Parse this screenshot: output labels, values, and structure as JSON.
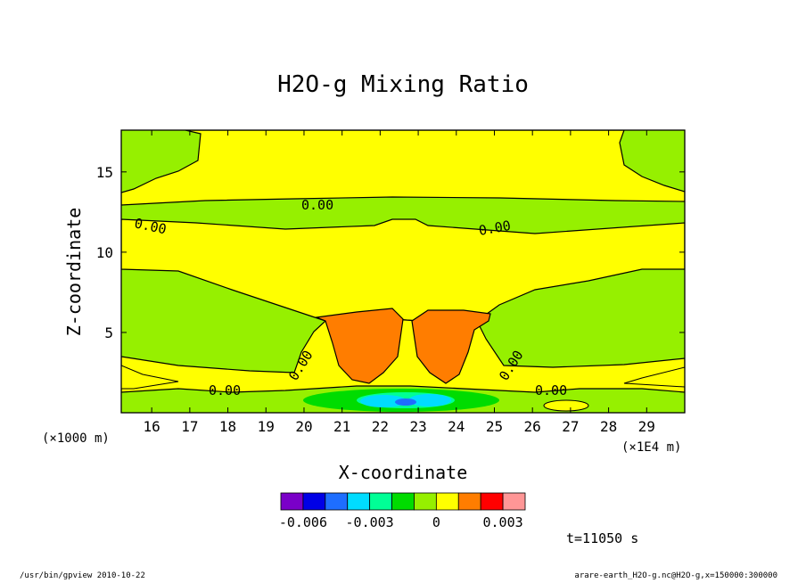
{
  "chart_data": {
    "type": "contour",
    "title": "H2O-g Mixing Ratio",
    "xlabel": "X-coordinate",
    "ylabel": "Z-coordinate",
    "x_unit_left": "(×1000 m)",
    "x_unit_right": "(×1E4 m)",
    "xlim": [
      15.2,
      30.0
    ],
    "ylim": [
      0,
      17.6
    ],
    "x_ticks": [
      16,
      17,
      18,
      19,
      20,
      21,
      22,
      23,
      24,
      25,
      26,
      27,
      28,
      29
    ],
    "y_ticks": [
      5,
      10,
      15
    ],
    "contour_labels": [
      "0.00",
      "0.00",
      "0.00",
      "0.00",
      "0.00",
      "0.00",
      "0.00"
    ],
    "colorbar": {
      "levels": [
        -0.007,
        -0.006,
        -0.005,
        -0.004,
        -0.003,
        -0.002,
        -0.001,
        0,
        0.001,
        0.002,
        0.003,
        0.004
      ],
      "colors": [
        "#7a00c8",
        "#0000e6",
        "#1e6eff",
        "#00dcff",
        "#00ff96",
        "#00dc00",
        "#96f000",
        "#ffff00",
        "#ff7d00",
        "#ff0000",
        "#ff9696"
      ],
      "tick_labels": [
        "-0.006",
        "-0.003",
        "0",
        "0.003"
      ],
      "tick_values": [
        -0.006,
        -0.003,
        0,
        0.003
      ]
    },
    "time_label": "t=11050 s",
    "grid": false
  },
  "footer": {
    "left": "/usr/bin/gpview   2010-10-22",
    "right": "arare-earth_H2O-g.nc@H2O-g,x=150000:300000"
  }
}
